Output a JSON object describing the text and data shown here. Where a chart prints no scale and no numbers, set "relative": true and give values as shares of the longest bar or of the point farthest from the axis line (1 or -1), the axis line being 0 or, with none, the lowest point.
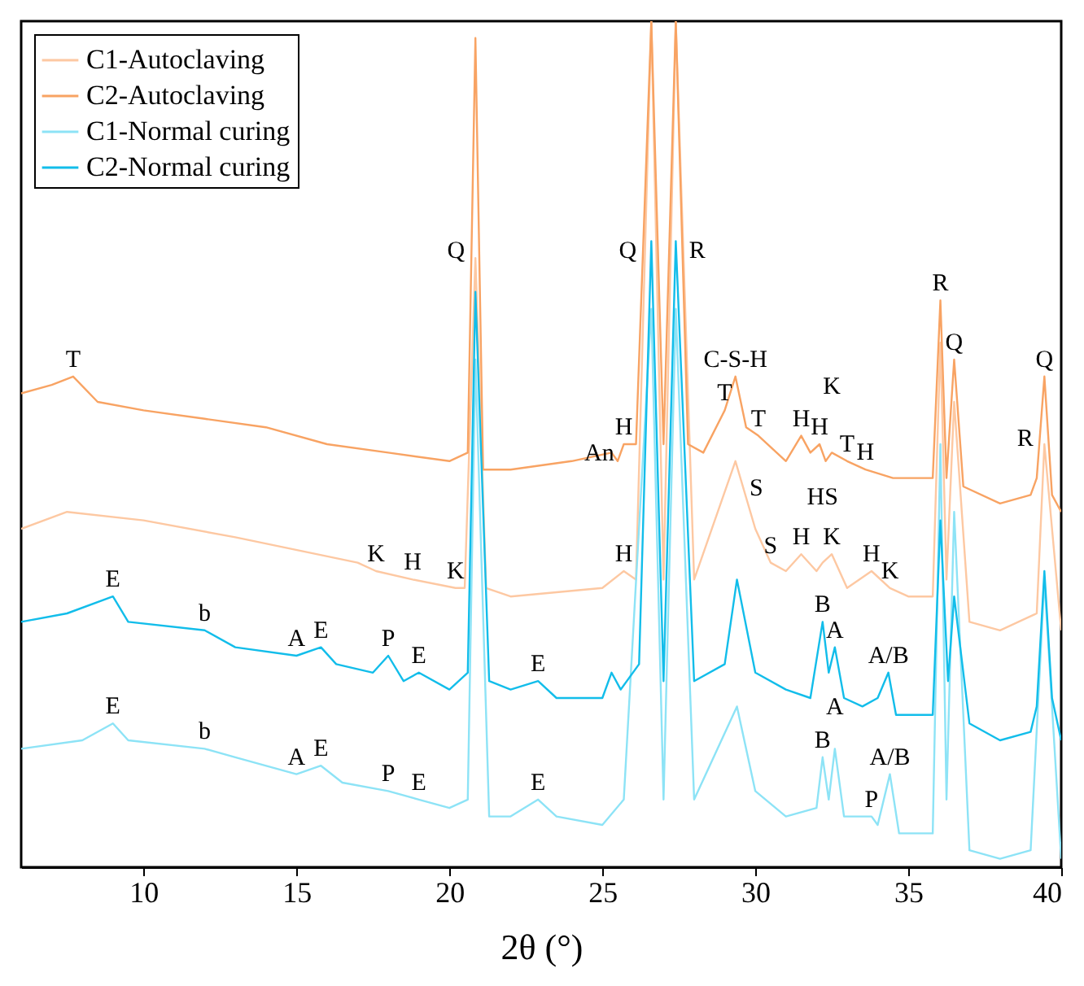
{
  "chart_data": {
    "type": "line",
    "relative": true,
    "xlabel": "2θ (°)",
    "xlim": [
      6,
      40
    ],
    "xticks": [
      10,
      15,
      20,
      25,
      30,
      35,
      40
    ],
    "legend": "top left",
    "series": [
      {
        "name": "C1-Autoclaving",
        "color": "#fdc8a2",
        "x": [
          6,
          7.5,
          10,
          13,
          17,
          17.6,
          18.8,
          20.2,
          20.5,
          20.85,
          21.2,
          22,
          25,
          25.7,
          26.1,
          26.6,
          27.0,
          27.4,
          28,
          29.35,
          30,
          30.5,
          31,
          31.5,
          32,
          32.2,
          32.5,
          33,
          33.8,
          34.4,
          35,
          35.8,
          36.05,
          36.25,
          36.5,
          37,
          38,
          39.2,
          39.45,
          40
        ],
        "values": [
          0.4,
          0.42,
          0.41,
          0.39,
          0.36,
          0.35,
          0.34,
          0.33,
          0.33,
          0.72,
          0.33,
          0.32,
          0.33,
          0.35,
          0.34,
          1,
          0.34,
          1,
          0.34,
          0.48,
          0.4,
          0.36,
          0.35,
          0.37,
          0.35,
          0.36,
          0.37,
          0.33,
          0.35,
          0.33,
          0.32,
          0.32,
          0.62,
          0.34,
          0.55,
          0.29,
          0.28,
          0.3,
          0.5,
          0.28
        ]
      },
      {
        "name": "C2-Autoclaving",
        "color": "#f8a363",
        "x": [
          6,
          7,
          7.7,
          8.5,
          10,
          12,
          14,
          16,
          18,
          20,
          20.6,
          20.85,
          21.1,
          22,
          24,
          25.3,
          25.5,
          25.7,
          26.1,
          26.6,
          27.0,
          27.4,
          27.8,
          28.3,
          29.0,
          29.35,
          29.7,
          30.1,
          31,
          31.5,
          31.8,
          32.1,
          32.3,
          32.5,
          33,
          33.6,
          34.5,
          35.8,
          36.05,
          36.25,
          36.5,
          36.8,
          38,
          39,
          39.2,
          39.45,
          39.7,
          40
        ],
        "values": [
          0.56,
          0.57,
          0.58,
          0.55,
          0.54,
          0.53,
          0.52,
          0.5,
          0.49,
          0.48,
          0.49,
          0.98,
          0.47,
          0.47,
          0.48,
          0.49,
          0.48,
          0.5,
          0.5,
          1,
          0.5,
          1,
          0.5,
          0.49,
          0.54,
          0.58,
          0.52,
          0.51,
          0.48,
          0.51,
          0.49,
          0.5,
          0.48,
          0.49,
          0.48,
          0.47,
          0.46,
          0.46,
          0.67,
          0.46,
          0.6,
          0.45,
          0.43,
          0.44,
          0.46,
          0.58,
          0.44,
          0.42
        ]
      },
      {
        "name": "C1-Normal curing",
        "color": "#8de3f6",
        "x": [
          6,
          8,
          9,
          9.5,
          12,
          13,
          15,
          15.8,
          16.5,
          18,
          19,
          20,
          20.6,
          20.85,
          21.3,
          22,
          22.9,
          23.5,
          25,
          25.7,
          26.6,
          27.0,
          27.4,
          28,
          29.4,
          30,
          31,
          32,
          32.2,
          32.4,
          32.6,
          32.9,
          33.8,
          34,
          34.4,
          34.7,
          35.8,
          36.05,
          36.25,
          36.5,
          37,
          38,
          39,
          39.45,
          40
        ],
        "values": [
          0.14,
          0.15,
          0.17,
          0.15,
          0.14,
          0.13,
          0.11,
          0.12,
          0.1,
          0.09,
          0.08,
          0.07,
          0.08,
          0.6,
          0.06,
          0.06,
          0.08,
          0.06,
          0.05,
          0.08,
          0.66,
          0.08,
          0.66,
          0.08,
          0.19,
          0.09,
          0.06,
          0.07,
          0.13,
          0.08,
          0.14,
          0.06,
          0.06,
          0.05,
          0.11,
          0.04,
          0.04,
          0.5,
          0.08,
          0.42,
          0.02,
          0.01,
          0.02,
          0.34,
          0.01
        ]
      },
      {
        "name": "C2-Normal curing",
        "color": "#12bdea",
        "x": [
          6,
          7.5,
          9,
          9.5,
          12,
          13,
          15,
          15.8,
          16.3,
          17.5,
          18,
          18.5,
          19,
          20,
          20.6,
          20.85,
          21.3,
          22,
          22.9,
          23.5,
          25,
          25.3,
          25.6,
          26.2,
          26.6,
          27.0,
          27.4,
          28,
          29,
          29.4,
          30,
          31,
          31.8,
          32.2,
          32.4,
          32.6,
          32.9,
          33.5,
          34,
          34.35,
          34.6,
          35.8,
          36.05,
          36.3,
          36.5,
          37,
          38,
          39,
          39.2,
          39.45,
          39.7,
          40
        ],
        "values": [
          0.29,
          0.3,
          0.32,
          0.29,
          0.28,
          0.26,
          0.25,
          0.26,
          0.24,
          0.23,
          0.25,
          0.22,
          0.23,
          0.21,
          0.23,
          0.68,
          0.22,
          0.21,
          0.22,
          0.2,
          0.2,
          0.23,
          0.21,
          0.24,
          0.74,
          0.22,
          0.74,
          0.22,
          0.24,
          0.34,
          0.23,
          0.21,
          0.2,
          0.29,
          0.23,
          0.26,
          0.2,
          0.19,
          0.2,
          0.23,
          0.18,
          0.18,
          0.41,
          0.22,
          0.32,
          0.17,
          0.15,
          0.16,
          0.19,
          0.35,
          0.2,
          0.15
        ]
      }
    ],
    "annotations": [
      {
        "text": "T",
        "x": 7.7,
        "y": 0.58
      },
      {
        "text": "Q",
        "x": 20.72,
        "y": 0.73
      },
      {
        "text": "Q",
        "x": 26.33,
        "y": 0.73
      },
      {
        "text": "R",
        "x": 27.62,
        "y": 0.73
      },
      {
        "text": "C-S-H",
        "x": 29.35,
        "y": 0.58
      },
      {
        "text": "T",
        "x": 29.0,
        "y": 0.54
      },
      {
        "text": "T",
        "x": 30.1,
        "y": 0.51
      },
      {
        "text": "An",
        "x": 25.6,
        "y": 0.49
      },
      {
        "text": "H",
        "x": 25.7,
        "y": 0.5
      },
      {
        "text": "H",
        "x": 31.5,
        "y": 0.51
      },
      {
        "text": "H",
        "x": 32.1,
        "y": 0.5
      },
      {
        "text": "K",
        "x": 32.5,
        "y": 0.49
      },
      {
        "text": "T",
        "x": 33.0,
        "y": 0.48
      },
      {
        "text": "H",
        "x": 33.6,
        "y": 0.47
      },
      {
        "text": "R",
        "x": 36.05,
        "y": 0.67
      },
      {
        "text": "Q",
        "x": 36.5,
        "y": 0.6
      },
      {
        "text": "Q",
        "x": 39.45,
        "y": 0.58
      },
      {
        "text": "R",
        "x": 39.3,
        "y": 0.508
      },
      {
        "text": "K",
        "x": 17.6,
        "y": 0.35
      },
      {
        "text": "H",
        "x": 18.8,
        "y": 0.34
      },
      {
        "text": "K",
        "x": 20.2,
        "y": 0.33
      },
      {
        "text": "H",
        "x": 25.7,
        "y": 0.35
      },
      {
        "text": "S",
        "x": 29.6,
        "y": 0.449
      },
      {
        "text": "S",
        "x": 30.5,
        "y": 0.36
      },
      {
        "text": "H",
        "x": 31.5,
        "y": 0.37
      },
      {
        "text": "HS",
        "x": 32.2,
        "y": 0.36
      },
      {
        "text": "K",
        "x": 32.5,
        "y": 0.37
      },
      {
        "text": "H",
        "x": 33.8,
        "y": 0.35
      },
      {
        "text": "K",
        "x": 34.4,
        "y": 0.33
      },
      {
        "text": "E",
        "x": 9.0,
        "y": 0.32
      },
      {
        "text": "b",
        "x": 12,
        "y": 0.28
      },
      {
        "text": "A",
        "x": 15,
        "y": 0.25
      },
      {
        "text": "E",
        "x": 15.8,
        "y": 0.26
      },
      {
        "text": "P",
        "x": 18,
        "y": 0.25
      },
      {
        "text": "E",
        "x": 19,
        "y": 0.23
      },
      {
        "text": "E",
        "x": 22.9,
        "y": 0.22
      },
      {
        "text": "B",
        "x": 32.2,
        "y": 0.29
      },
      {
        "text": "A",
        "x": 32.6,
        "y": 0.26
      },
      {
        "text": "A/B",
        "x": 34.35,
        "y": 0.23
      },
      {
        "text": "E",
        "x": 9.0,
        "y": 0.17
      },
      {
        "text": "b",
        "x": 12,
        "y": 0.14
      },
      {
        "text": "A",
        "x": 15,
        "y": 0.11
      },
      {
        "text": "E",
        "x": 15.8,
        "y": 0.12
      },
      {
        "text": "P",
        "x": 18,
        "y": 0.09
      },
      {
        "text": "E",
        "x": 19,
        "y": 0.08
      },
      {
        "text": "E",
        "x": 22.9,
        "y": 0.08
      },
      {
        "text": "B",
        "x": 32.2,
        "y": 0.13
      },
      {
        "text": "A",
        "x": 32.6,
        "y": 0.14
      },
      {
        "text": "A/B",
        "x": 34.4,
        "y": 0.11
      },
      {
        "text": "P",
        "x": 33.8,
        "y": 0.06
      }
    ]
  }
}
